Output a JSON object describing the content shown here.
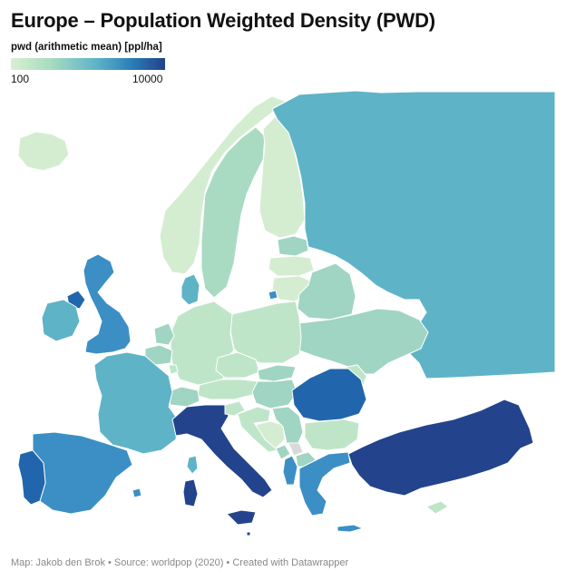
{
  "header": {
    "title": "Europe – Population Weighted Density (PWD)"
  },
  "legend": {
    "title": "pwd (arithmetic mean) [ppl/ha]",
    "min_label": "100",
    "max_label": "10000",
    "colors": [
      "#d8efd3",
      "#a9dcc0",
      "#5fb4c9",
      "#2b7fb8",
      "#23418a"
    ]
  },
  "colors": {
    "low": "#d4edd1",
    "low_mid": "#bfe5c8",
    "mid": "#9fd5c2",
    "mid_high": "#5eb3c7",
    "high": "#3b8fc4",
    "very_high": "#2166ac",
    "max": "#23448c",
    "no_data": "#d9d9d9"
  },
  "footer": {
    "credit": "Map: Jakob den Brok • Source: worldpop (2020) • Created with Datawrapper"
  }
}
